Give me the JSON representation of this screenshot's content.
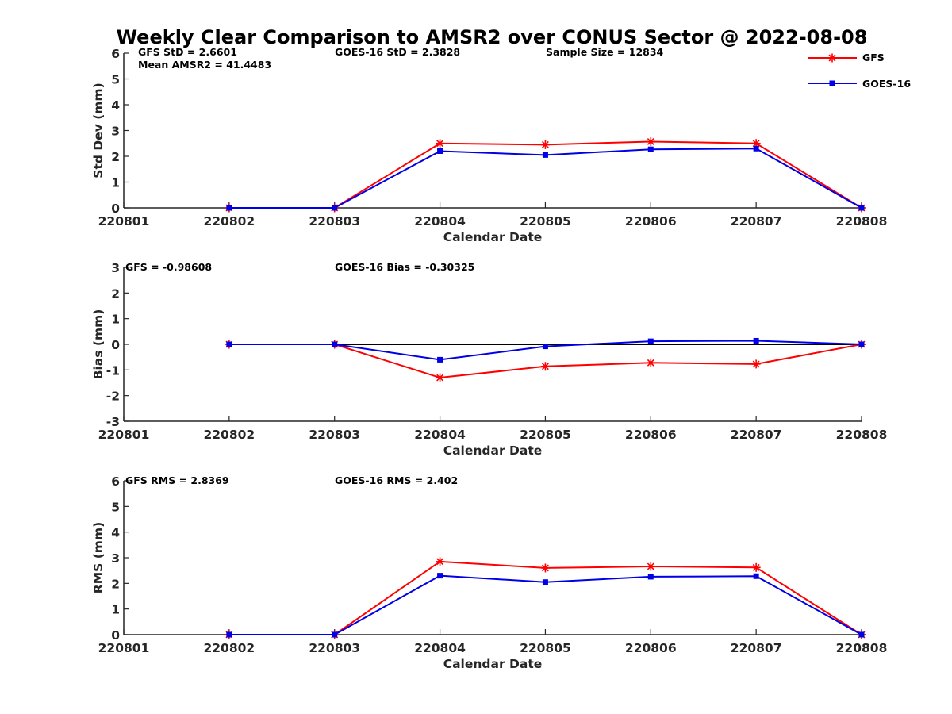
{
  "title": "Weekly Clear Comparison to AMSR2 over CONUS Sector @ 2022-08-08",
  "colors": {
    "GFS": "#ff0000",
    "GOES-16": "#0000e6",
    "zero_line": "#000000",
    "axis": "#262626"
  },
  "legend": {
    "placement": "top-right",
    "entries": [
      {
        "name": "GFS",
        "marker": "asterisk"
      },
      {
        "name": "GOES-16",
        "marker": "square"
      }
    ]
  },
  "chart_data": [
    {
      "type": "line",
      "x": [
        "220801",
        "220802",
        "220803",
        "220804",
        "220805",
        "220806",
        "220807",
        "220808"
      ],
      "xlabel": "Calendar Date",
      "ylabel": "Std Dev (mm)",
      "ylim": [
        0,
        6
      ],
      "yticks": [
        "0",
        "1",
        "2",
        "3",
        "4",
        "5",
        "6"
      ],
      "grid": false,
      "annotations": [
        "GFS StD = 2.6601",
        "Mean AMSR2 = 41.4483",
        "GOES-16 StD = 2.3828",
        "Sample Size = 12834"
      ],
      "series": [
        {
          "name": "GFS",
          "values": [
            null,
            0,
            0,
            2.5,
            2.45,
            2.57,
            2.5,
            0
          ]
        },
        {
          "name": "GOES-16",
          "values": [
            null,
            0,
            0,
            2.2,
            2.05,
            2.27,
            2.3,
            0
          ]
        }
      ]
    },
    {
      "type": "line",
      "x": [
        "220801",
        "220802",
        "220803",
        "220804",
        "220805",
        "220806",
        "220807",
        "220808"
      ],
      "xlabel": "Calendar Date",
      "ylabel": "Bias (mm)",
      "ylim": [
        -3,
        3
      ],
      "yticks": [
        "-3",
        "-2",
        "-1",
        "0",
        "1",
        "2",
        "3"
      ],
      "grid": false,
      "zero_line": true,
      "annotations": [
        "GFS = -0.98608",
        "GOES-16 Bias  = -0.30325"
      ],
      "series": [
        {
          "name": "GFS",
          "values": [
            null,
            0,
            0,
            -1.3,
            -0.86,
            -0.72,
            -0.77,
            0
          ]
        },
        {
          "name": "GOES-16",
          "values": [
            null,
            0,
            0,
            -0.6,
            -0.08,
            0.12,
            0.14,
            0
          ]
        }
      ]
    },
    {
      "type": "line",
      "x": [
        "220801",
        "220802",
        "220803",
        "220804",
        "220805",
        "220806",
        "220807",
        "220808"
      ],
      "xlabel": "Calendar Date",
      "ylabel": "RMS (mm)",
      "ylim": [
        0,
        6
      ],
      "yticks": [
        "0",
        "1",
        "2",
        "3",
        "4",
        "5",
        "6"
      ],
      "grid": false,
      "annotations": [
        "GFS RMS = 2.8369",
        "GOES-16 RMS = 2.402"
      ],
      "series": [
        {
          "name": "GFS",
          "values": [
            null,
            0,
            0,
            2.85,
            2.6,
            2.66,
            2.62,
            0
          ]
        },
        {
          "name": "GOES-16",
          "values": [
            null,
            0,
            0,
            2.3,
            2.05,
            2.26,
            2.28,
            0
          ]
        }
      ]
    }
  ]
}
